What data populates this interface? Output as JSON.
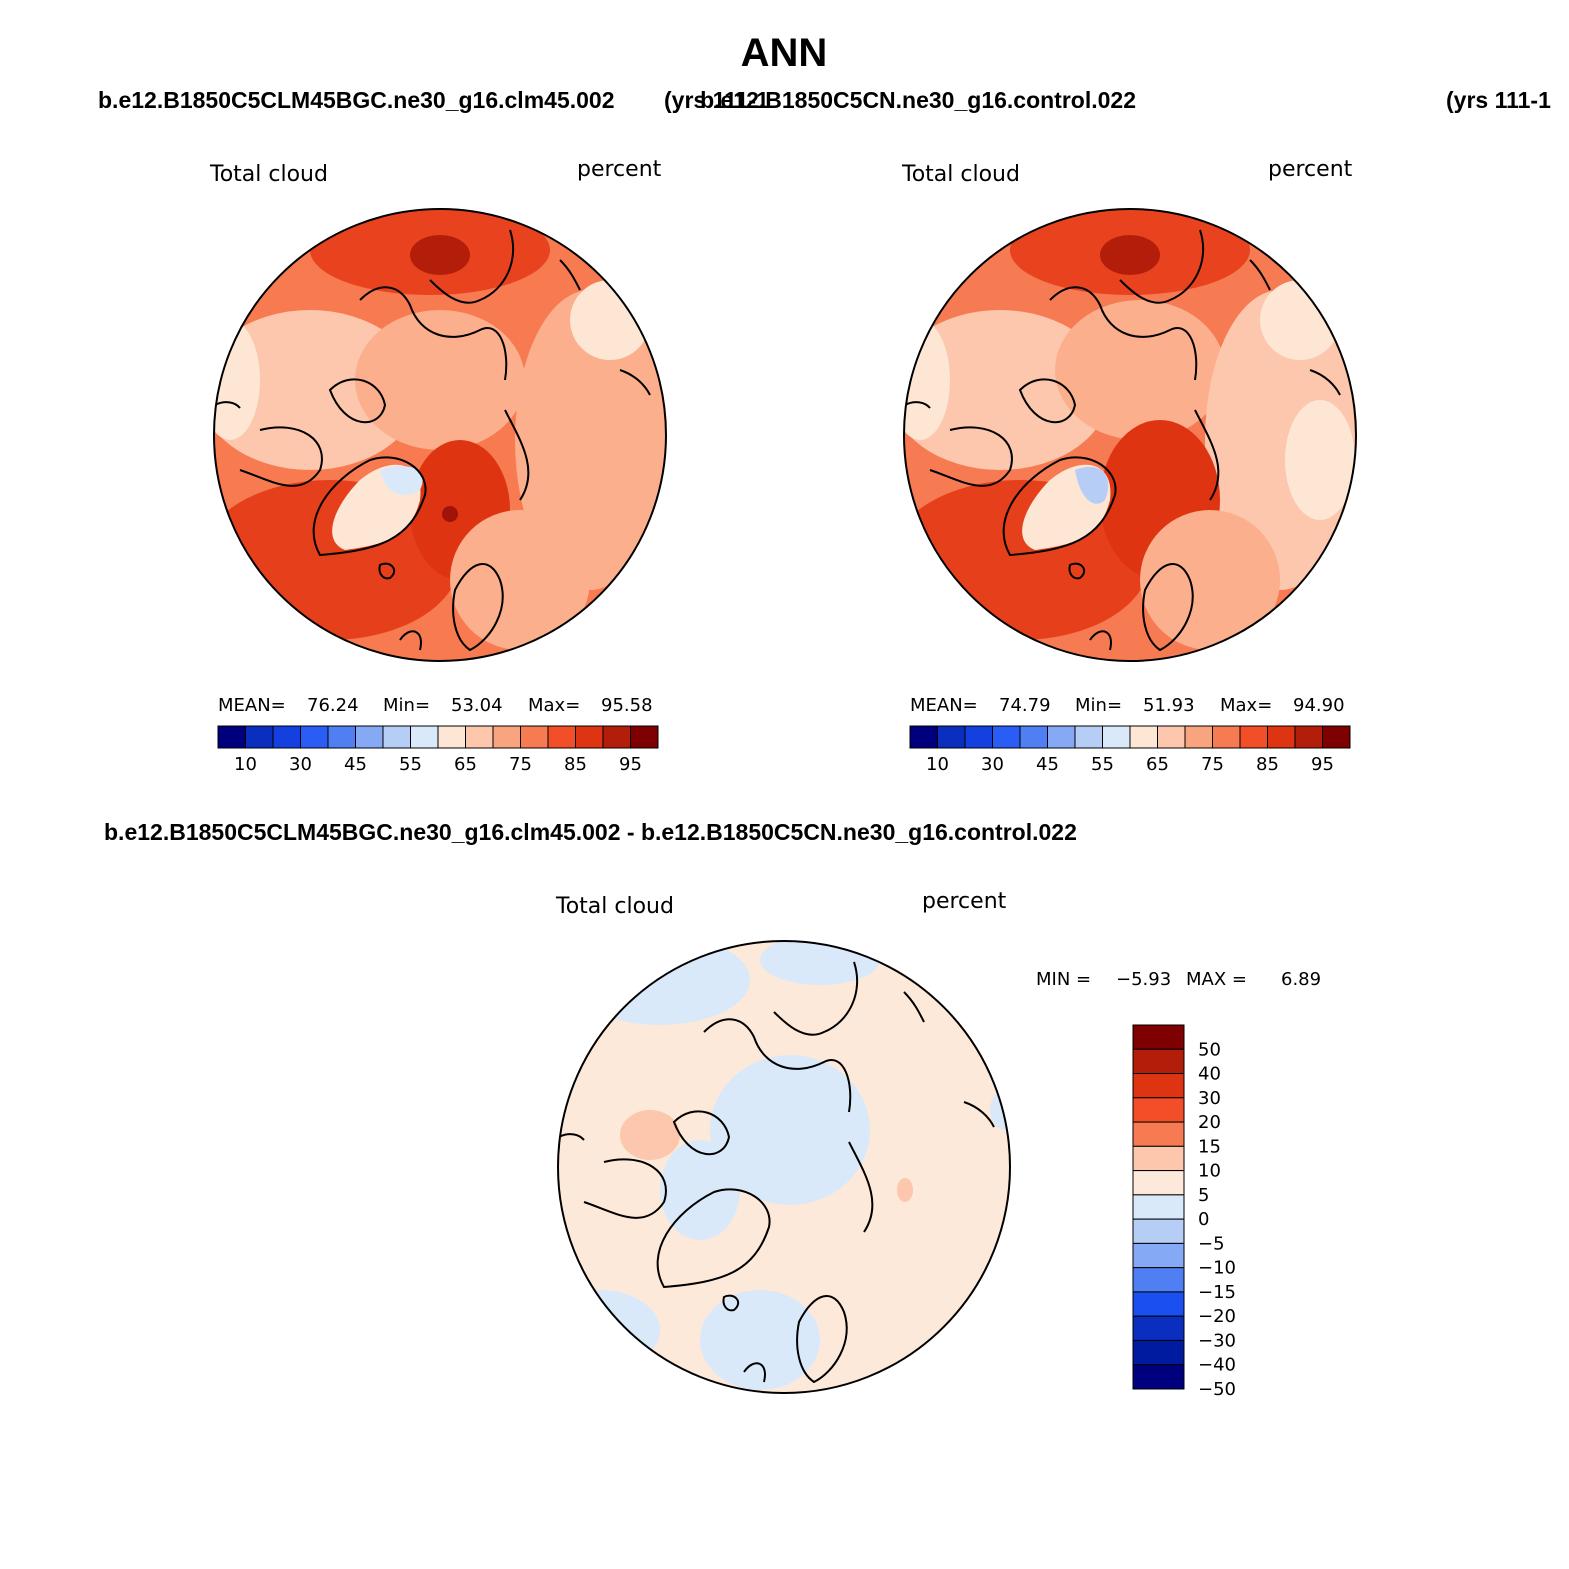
{
  "page": {
    "title": "ANN",
    "top_left_case": "b.e12.B1850C5CLM45BGC.ne30_g16.clm45.002",
    "top_left_years": "(yrs 111-1",
    "top_right_case": "b.e12.B1850C5CN.ne30_g16.control.022",
    "top_right_years": "(yrs 111-1",
    "diff_title": "b.e12.B1850C5CLM45BGC.ne30_g16.clm45.002 - b.e12.B1850C5CN.ne30_g16.control.022"
  },
  "panels": [
    {
      "variable": "Total cloud",
      "units": "percent",
      "mean_label": "MEAN=",
      "mean": "76.24",
      "min_label": "Min=",
      "min": "53.04",
      "max_label": "Max=",
      "max": "95.58"
    },
    {
      "variable": "Total cloud",
      "units": "percent",
      "mean_label": "MEAN=",
      "mean": "74.79",
      "min_label": "Min=",
      "min": "51.93",
      "max_label": "Max=",
      "max": "94.90"
    }
  ],
  "diff_panel": {
    "variable": "Total cloud",
    "units": "percent",
    "min_label": "MIN =",
    "min": "−5.93",
    "max_label": "MAX =",
    "max": "6.89"
  },
  "colorbar_abs": {
    "colors": [
      "#00007f",
      "#0a2ebd",
      "#1540e0",
      "#2a5df5",
      "#4f7ff2",
      "#85a9f5",
      "#b6cdf6",
      "#d9e9fa",
      "#fde6d4",
      "#fcc7ad",
      "#f8a47e",
      "#f67a52",
      "#f24f28",
      "#de3412",
      "#b31e0a",
      "#7f0000"
    ],
    "labels": [
      "10",
      "30",
      "45",
      "55",
      "65",
      "75",
      "85",
      "95"
    ]
  },
  "colorbar_diff": {
    "colors": [
      "#7f0000",
      "#b31e0a",
      "#de3412",
      "#f24f28",
      "#f67a52",
      "#fcc7ad",
      "#fde9d9",
      "#d9e9fa",
      "#b6cdf6",
      "#85a9f5",
      "#4f7ff2",
      "#1c4ff0",
      "#0a2ebd",
      "#001aa0",
      "#00007f"
    ],
    "labels": [
      "50",
      "40",
      "30",
      "20",
      "15",
      "10",
      "5",
      "0",
      "−5",
      "−10",
      "−15",
      "−20",
      "−30",
      "−40",
      "−50"
    ]
  }
}
